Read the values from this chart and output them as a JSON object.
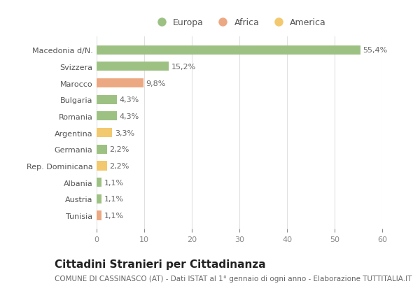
{
  "categories": [
    "Tunisia",
    "Austria",
    "Albania",
    "Rep. Dominicana",
    "Germania",
    "Argentina",
    "Romania",
    "Bulgaria",
    "Marocco",
    "Svizzera",
    "Macedonia d/N."
  ],
  "values": [
    1.1,
    1.1,
    1.1,
    2.2,
    2.2,
    3.3,
    4.3,
    4.3,
    9.8,
    15.2,
    55.4
  ],
  "labels": [
    "1,1%",
    "1,1%",
    "1,1%",
    "2,2%",
    "2,2%",
    "3,3%",
    "4,3%",
    "4,3%",
    "9,8%",
    "15,2%",
    "55,4%"
  ],
  "colors": [
    "#EBA882",
    "#9DC183",
    "#9DC183",
    "#F2C96E",
    "#9DC183",
    "#F2C96E",
    "#9DC183",
    "#9DC183",
    "#EBA882",
    "#9DC183",
    "#9DC183"
  ],
  "legend_labels": [
    "Europa",
    "Africa",
    "America"
  ],
  "legend_colors": [
    "#9DC183",
    "#EBA882",
    "#F2C96E"
  ],
  "title": "Cittadini Stranieri per Cittadinanza",
  "subtitle": "COMUNE DI CASSINASCO (AT) - Dati ISTAT al 1° gennaio di ogni anno - Elaborazione TUTTITALIA.IT",
  "xlim": [
    0,
    60
  ],
  "xticks": [
    0,
    10,
    20,
    30,
    40,
    50,
    60
  ],
  "bg_color": "#FFFFFF",
  "grid_color": "#E0E0E0",
  "bar_height": 0.55,
  "title_fontsize": 11,
  "subtitle_fontsize": 7.5,
  "label_fontsize": 8,
  "tick_fontsize": 8,
  "legend_fontsize": 9
}
